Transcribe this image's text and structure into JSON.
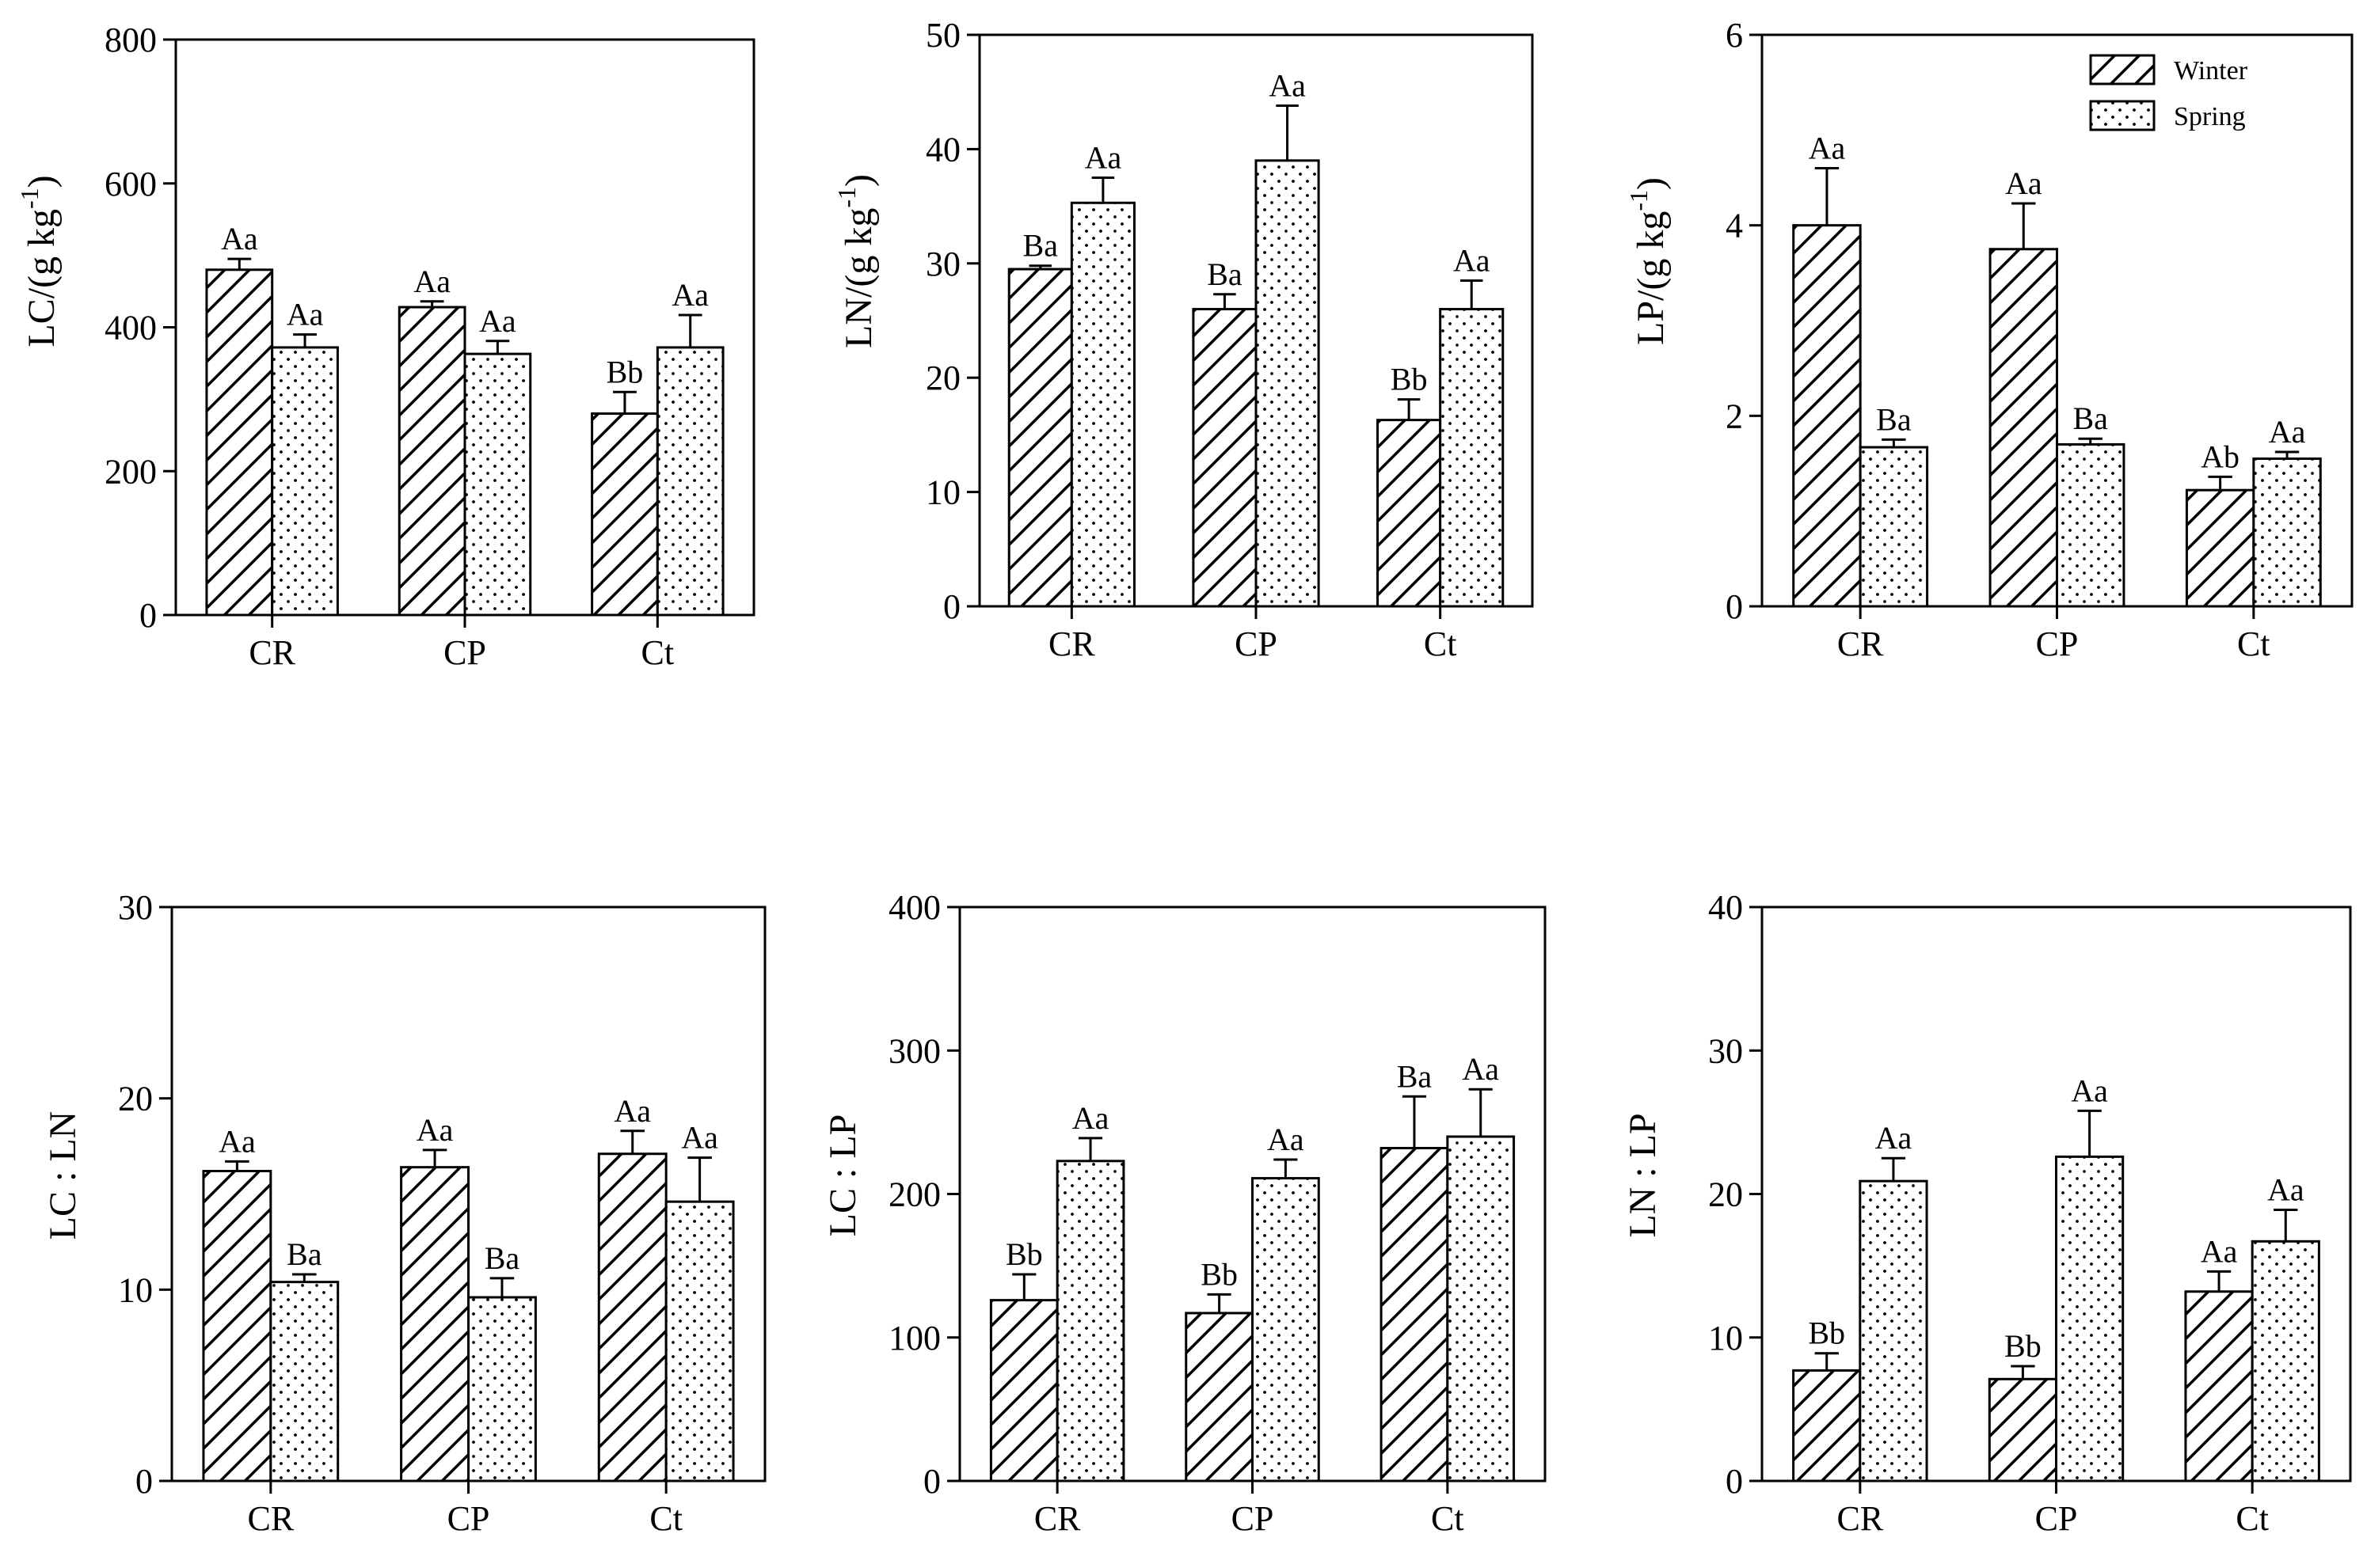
{
  "legend": {
    "winter_label": "Winter",
    "spring_label": "Spring"
  },
  "chart_data": [
    {
      "type": "bar",
      "ylabel": "LC/(g kg-1)",
      "ylabel_base": "LC/(g kg",
      "ylabel_sup": "-1",
      "ylabel_close": ")",
      "categories": [
        "CR",
        "CP",
        "Ct"
      ],
      "ylim": [
        0,
        800
      ],
      "yticks": [
        "0",
        "200",
        "400",
        "600",
        "800"
      ],
      "series": [
        {
          "name": "Winter",
          "values": [
            480,
            428,
            280
          ],
          "errors": [
            15,
            8,
            30
          ],
          "labels": [
            "Aa",
            "Aa",
            "Bb"
          ]
        },
        {
          "name": "Spring",
          "values": [
            372,
            363,
            372
          ],
          "errors": [
            18,
            18,
            45
          ],
          "labels": [
            "Aa",
            "Aa",
            "Aa"
          ]
        }
      ]
    },
    {
      "type": "bar",
      "ylabel": "LN/(g kg-1)",
      "ylabel_base": "LN/(g kg",
      "ylabel_sup": "-1",
      "ylabel_close": ")",
      "categories": [
        "CR",
        "CP",
        "Ct"
      ],
      "ylim": [
        0,
        50
      ],
      "yticks": [
        "0",
        "10",
        "20",
        "30",
        "40",
        "50"
      ],
      "series": [
        {
          "name": "Winter",
          "values": [
            29.5,
            26,
            16.3
          ],
          "errors": [
            0.3,
            1.3,
            1.8
          ],
          "labels": [
            "Ba",
            "Ba",
            "Bb"
          ]
        },
        {
          "name": "Spring",
          "values": [
            35.3,
            39,
            26
          ],
          "errors": [
            2.2,
            4.8,
            2.5
          ],
          "labels": [
            "Aa",
            "Aa",
            "Aa"
          ]
        }
      ]
    },
    {
      "type": "bar",
      "ylabel": "LP/(g kg-1)",
      "ylabel_base": "LP/(g kg",
      "ylabel_sup": "-1",
      "ylabel_close": ")",
      "categories": [
        "CR",
        "CP",
        "Ct"
      ],
      "ylim": [
        0,
        6
      ],
      "yticks": [
        "0",
        "2",
        "4",
        "6"
      ],
      "legend": true,
      "series": [
        {
          "name": "Winter",
          "values": [
            4.0,
            3.75,
            1.22
          ],
          "errors": [
            0.6,
            0.48,
            0.14
          ],
          "labels": [
            "Aa",
            "Aa",
            "Ab"
          ]
        },
        {
          "name": "Spring",
          "values": [
            1.67,
            1.7,
            1.55
          ],
          "errors": [
            0.08,
            0.06,
            0.07
          ],
          "labels": [
            "Ba",
            "Ba",
            "Aa"
          ]
        }
      ]
    },
    {
      "type": "bar",
      "ylabel": "LC : LN",
      "categories": [
        "CR",
        "CP",
        "Ct"
      ],
      "ylim": [
        0,
        30
      ],
      "yticks": [
        "0",
        "10",
        "20",
        "30"
      ],
      "series": [
        {
          "name": "Winter",
          "values": [
            16.2,
            16.4,
            17.1
          ],
          "errors": [
            0.5,
            0.9,
            1.2
          ],
          "labels": [
            "Aa",
            "Aa",
            "Aa"
          ]
        },
        {
          "name": "Spring",
          "values": [
            10.4,
            9.6,
            14.6
          ],
          "errors": [
            0.4,
            1.0,
            2.3
          ],
          "labels": [
            "Ba",
            "Ba",
            "Aa"
          ]
        }
      ]
    },
    {
      "type": "bar",
      "ylabel": "LC : LP",
      "categories": [
        "CR",
        "CP",
        "Ct"
      ],
      "ylim": [
        0,
        400
      ],
      "yticks": [
        "0",
        "100",
        "200",
        "300",
        "400"
      ],
      "series": [
        {
          "name": "Winter",
          "values": [
            126,
            117,
            232
          ],
          "errors": [
            18,
            13,
            36
          ],
          "labels": [
            "Bb",
            "Bb",
            "Ba"
          ]
        },
        {
          "name": "Spring",
          "values": [
            223,
            211,
            240
          ],
          "errors": [
            16,
            13,
            33
          ],
          "labels": [
            "Aa",
            "Aa",
            "Aa"
          ]
        }
      ]
    },
    {
      "type": "bar",
      "ylabel": "LN : LP",
      "categories": [
        "CR",
        "CP",
        "Ct"
      ],
      "ylim": [
        0,
        40
      ],
      "yticks": [
        "0",
        "10",
        "20",
        "30",
        "40"
      ],
      "series": [
        {
          "name": "Winter",
          "values": [
            7.7,
            7.1,
            13.2
          ],
          "errors": [
            1.2,
            0.9,
            1.4
          ],
          "labels": [
            "Bb",
            "Bb",
            "Aa"
          ]
        },
        {
          "name": "Spring",
          "values": [
            20.9,
            22.6,
            16.7
          ],
          "errors": [
            1.6,
            3.2,
            2.2
          ],
          "labels": [
            "Aa",
            "Aa",
            "Aa"
          ]
        }
      ]
    }
  ]
}
